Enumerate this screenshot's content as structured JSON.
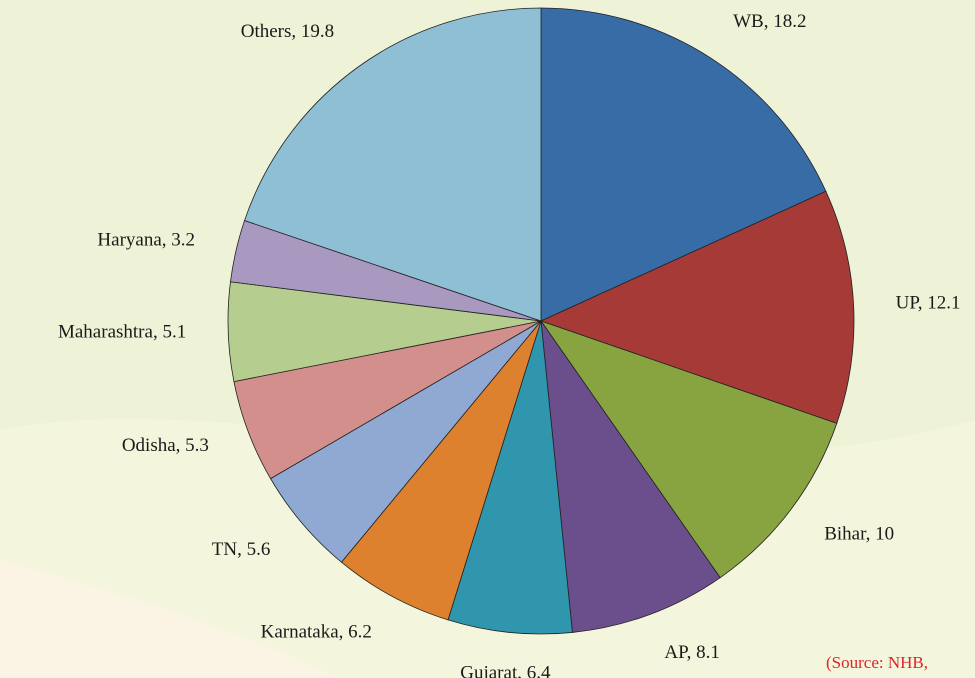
{
  "chart_data": {
    "type": "pie",
    "values": [
      18.2,
      12.1,
      10,
      8.1,
      6.4,
      6.2,
      5.6,
      5.3,
      5.1,
      3.2,
      19.8
    ],
    "value_labels": [
      "WB, 18.2",
      "UP, 12.1",
      "Bihar, 10",
      "AP, 8.1",
      "Gujarat, 6.4",
      "Karnataka, 6.2",
      "TN, 5.6",
      "Odisha, 5.3",
      "Maharashtra, 5.1",
      "Haryana, 3.2",
      "Others, 19.8"
    ],
    "colors": [
      "#386ca6",
      "#a63a36",
      "#87a441",
      "#6b4f8c",
      "#3096ad",
      "#dd812e",
      "#8fa9d3",
      "#d38f8c",
      "#b5cd8e",
      "#a998c0",
      "#8fbfd5"
    ],
    "source": "(Source: NHB,"
  }
}
